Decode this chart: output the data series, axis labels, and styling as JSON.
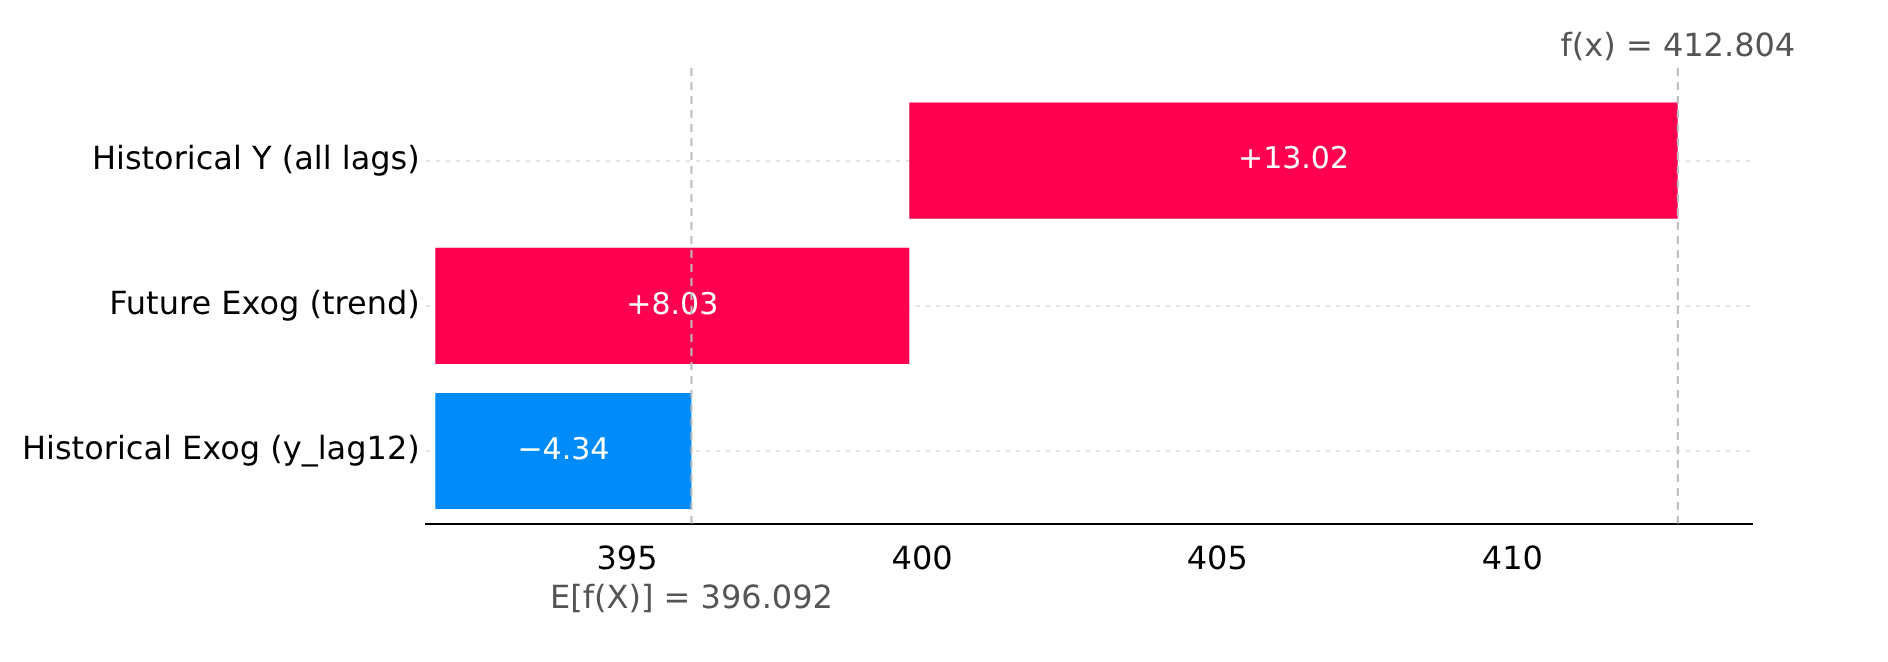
{
  "chart_data": {
    "type": "bar",
    "orientation": "horizontal",
    "categories": [
      "Historical Y (all lags)",
      "Future Exog (trend)",
      "Historical Exog (y_lag12)"
    ],
    "base": [
      399.782,
      391.752,
      396.092
    ],
    "values": [
      13.02,
      8.03,
      -4.34
    ],
    "colors": [
      "#ff0051",
      "#ff0051",
      "#008bfb"
    ],
    "value_labels": [
      "+13.02",
      "+8.03",
      "−4.34"
    ],
    "xlim": [
      391.59,
      414.06
    ],
    "xticks": [
      395,
      400,
      405,
      410
    ],
    "grid": "y",
    "ref_lines": [
      {
        "axis": "x",
        "value": 396.092,
        "label": "E[f(X)] = 396.092",
        "color": "#bbbbbb",
        "line_style": "dashed"
      },
      {
        "axis": "x",
        "value": 412.804,
        "label": "f(x) = 412.804",
        "color": "#bbbbbb",
        "line_style": "dashed"
      }
    ]
  }
}
